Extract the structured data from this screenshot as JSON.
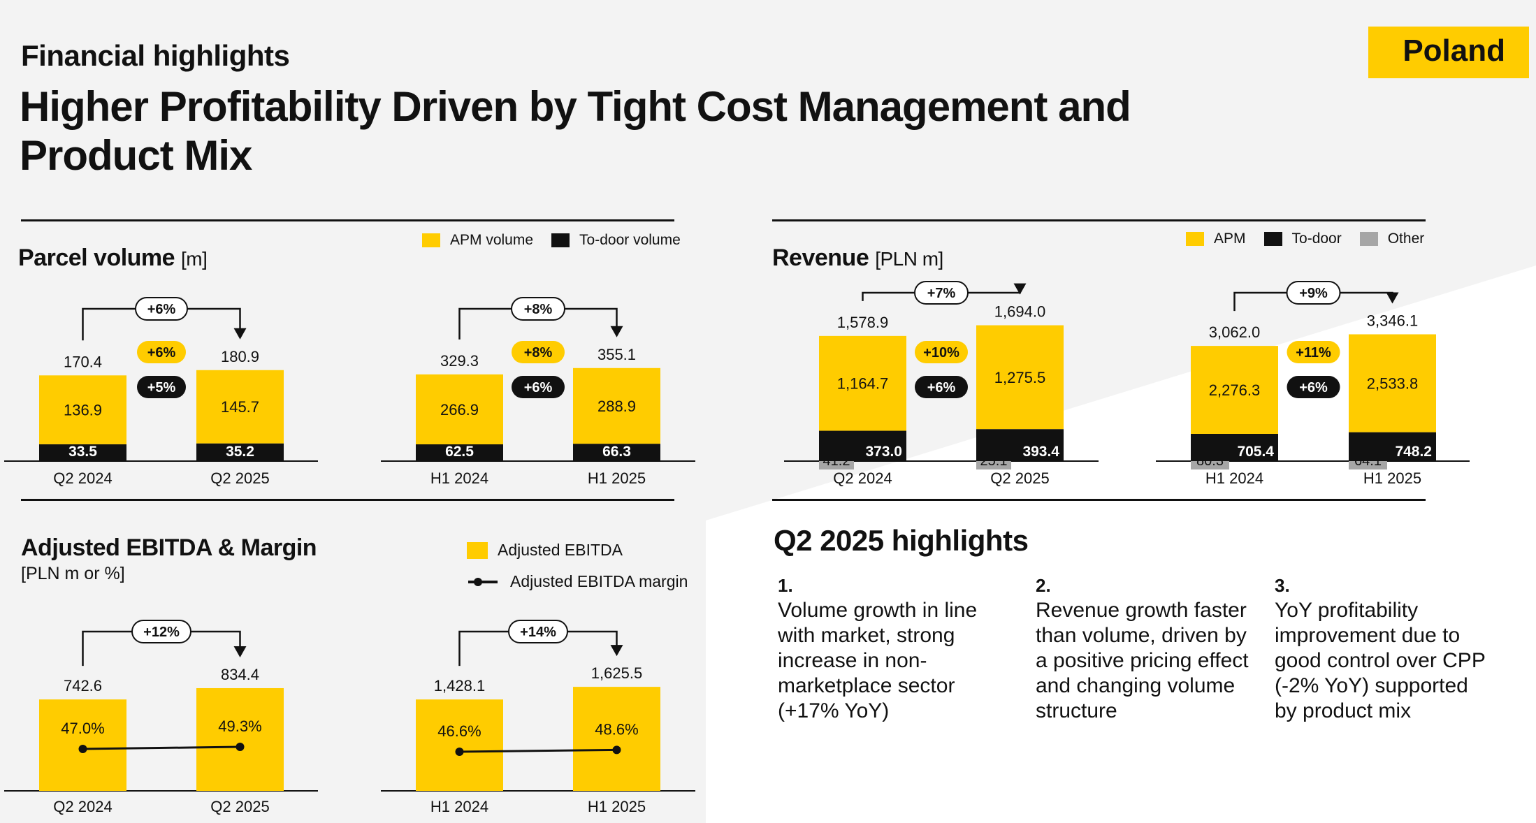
{
  "header": {
    "subtitle": "Financial highlights",
    "title": "Higher Profitability Driven by Tight Cost Management and Product Mix",
    "country": "Poland"
  },
  "colors": {
    "yellow": "#ffcc00",
    "black": "#111111",
    "grey": "#a6a6a6",
    "background": "#f3f3f3",
    "white": "#ffffff"
  },
  "parcel": {
    "title": "Parcel volume",
    "unit": "[m]",
    "legend": [
      "APM volume",
      "To-door volume"
    ]
  },
  "revenue": {
    "title": "Revenue",
    "unit": "[PLN m]",
    "legend": [
      "APM",
      "To-door",
      "Other"
    ]
  },
  "ebitda": {
    "title": "Adjusted EBITDA & Margin",
    "unit": "[PLN m or %]",
    "legend": [
      "Adjusted EBITDA",
      "Adjusted EBITDA margin"
    ]
  },
  "highlights": {
    "title": "Q2 2025 highlights",
    "items": [
      {
        "num": "1.",
        "text": "Volume growth in line with market, strong increase in non-marketplace sector (+17% YoY)"
      },
      {
        "num": "2.",
        "text": "Revenue growth faster than volume, driven by a positive pricing effect and changing volume structure"
      },
      {
        "num": "3.",
        "text": "YoY profitability improvement due to good control over CPP (-2% YoY) supported by product mix"
      }
    ]
  },
  "chart_data": [
    {
      "id": "parcel-q2",
      "type": "bar",
      "stacked": true,
      "title": "Parcel volume",
      "ylabel": "[m]",
      "categories": [
        "Q2 2024",
        "Q2 2025"
      ],
      "series": [
        {
          "name": "To-door volume",
          "values": [
            33.5,
            35.2
          ],
          "labels": [
            "33.5",
            "35.2"
          ]
        },
        {
          "name": "APM volume",
          "values": [
            136.9,
            145.7
          ],
          "labels": [
            "136.9",
            "145.7"
          ]
        }
      ],
      "totals": [
        "170.4",
        "180.9"
      ],
      "growth_total": "+6%",
      "growth_badges": [
        "+6%",
        "+5%"
      ]
    },
    {
      "id": "parcel-h1",
      "type": "bar",
      "stacked": true,
      "title": "Parcel volume",
      "ylabel": "[m]",
      "categories": [
        "H1 2024",
        "H1 2025"
      ],
      "series": [
        {
          "name": "To-door volume",
          "values": [
            62.5,
            66.3
          ],
          "labels": [
            "62.5",
            "66.3"
          ]
        },
        {
          "name": "APM volume",
          "values": [
            266.9,
            288.9
          ],
          "labels": [
            "266.9",
            "288.9"
          ]
        }
      ],
      "totals": [
        "329.3",
        "355.1"
      ],
      "growth_total": "+8%",
      "growth_badges": [
        "+8%",
        "+6%"
      ]
    },
    {
      "id": "revenue-q2",
      "type": "bar",
      "stacked": true,
      "title": "Revenue",
      "ylabel": "[PLN m]",
      "categories": [
        "Q2 2024",
        "Q2 2025"
      ],
      "series": [
        {
          "name": "Other",
          "values": [
            41.2,
            25.1
          ],
          "labels": [
            "41.2",
            "25.1"
          ]
        },
        {
          "name": "To-door",
          "values": [
            373.0,
            393.4
          ],
          "labels": [
            "373.0",
            "393.4"
          ]
        },
        {
          "name": "APM",
          "values": [
            1164.7,
            1275.5
          ],
          "labels": [
            "1,164.7",
            "1,275.5"
          ]
        }
      ],
      "totals": [
        "1,578.9",
        "1,694.0"
      ],
      "growth_total": "+7%",
      "growth_badges": [
        "+10%",
        "+6%"
      ]
    },
    {
      "id": "revenue-h1",
      "type": "bar",
      "stacked": true,
      "title": "Revenue",
      "ylabel": "[PLN m]",
      "categories": [
        "H1 2024",
        "H1 2025"
      ],
      "series": [
        {
          "name": "Other",
          "values": [
            80.3,
            64.1
          ],
          "labels": [
            "80.3",
            "64.1"
          ]
        },
        {
          "name": "To-door",
          "values": [
            705.4,
            748.2
          ],
          "labels": [
            "705.4",
            "748.2"
          ]
        },
        {
          "name": "APM",
          "values": [
            2276.3,
            2533.8
          ],
          "labels": [
            "2,276.3",
            "2,533.8"
          ]
        }
      ],
      "totals": [
        "3,062.0",
        "3,346.1"
      ],
      "growth_total": "+9%",
      "growth_badges": [
        "+11%",
        "+6%"
      ]
    },
    {
      "id": "ebitda-q2",
      "type": "bar",
      "title": "Adjusted EBITDA & Margin",
      "ylabel": "[PLN m or %]",
      "categories": [
        "Q2 2024",
        "Q2 2025"
      ],
      "series": [
        {
          "name": "Adjusted EBITDA",
          "values": [
            742.6,
            834.4
          ],
          "labels": [
            "742.6",
            "834.4"
          ]
        },
        {
          "name": "Adjusted EBITDA margin",
          "values": [
            47.0,
            49.3
          ],
          "labels": [
            "47.0%",
            "49.3%"
          ]
        }
      ],
      "growth_total": "+12%"
    },
    {
      "id": "ebitda-h1",
      "type": "bar",
      "title": "Adjusted EBITDA & Margin",
      "ylabel": "[PLN m or %]",
      "categories": [
        "H1 2024",
        "H1 2025"
      ],
      "series": [
        {
          "name": "Adjusted EBITDA",
          "values": [
            1428.1,
            1625.5
          ],
          "labels": [
            "1,428.1",
            "1,625.5"
          ]
        },
        {
          "name": "Adjusted EBITDA margin",
          "values": [
            46.6,
            48.6
          ],
          "labels": [
            "46.6%",
            "48.6%"
          ]
        }
      ],
      "growth_total": "+14%"
    }
  ]
}
